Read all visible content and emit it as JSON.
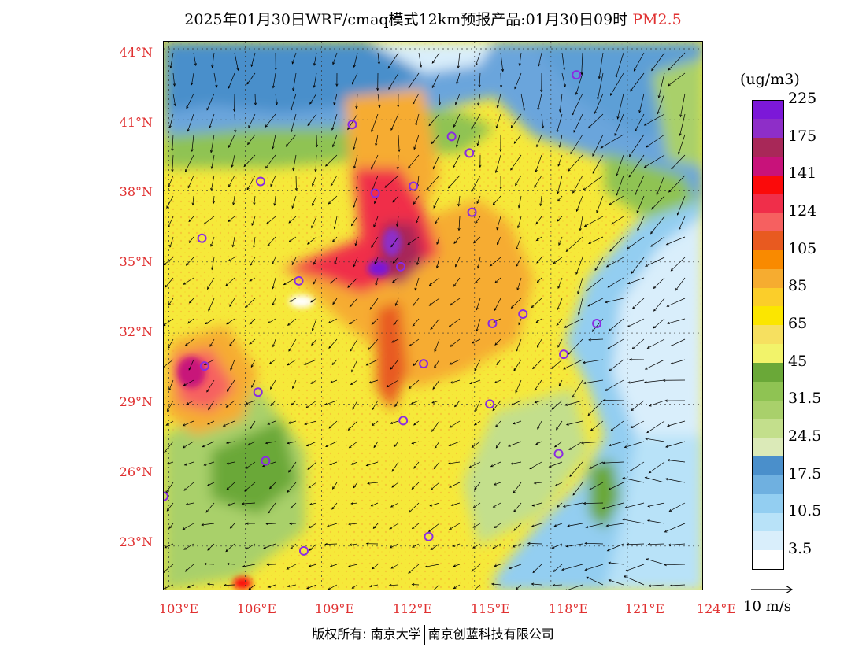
{
  "header": {
    "title_main": "2025年01月30日WRF/cmaq模式12km预报产品:01月30日09时",
    "title_product": "PM2.5"
  },
  "map": {
    "lat_labels": [
      "44°N",
      "41°N",
      "38°N",
      "35°N",
      "32°N",
      "29°N",
      "26°N",
      "23°N"
    ],
    "lon_labels": [
      "103°E",
      "106°E",
      "109°E",
      "112°E",
      "115°E",
      "118°E",
      "121°E",
      "124°E"
    ],
    "extent": {
      "lon": [
        102.8,
        124.0
      ],
      "lat": [
        21.1,
        44.3
      ]
    },
    "city_markers": [
      {
        "lon": 119.0,
        "lat": 42.9
      },
      {
        "lon": 110.2,
        "lat": 40.8
      },
      {
        "lon": 114.1,
        "lat": 40.3
      },
      {
        "lon": 114.8,
        "lat": 39.6
      },
      {
        "lon": 111.1,
        "lat": 37.9
      },
      {
        "lon": 112.6,
        "lat": 38.2
      },
      {
        "lon": 106.6,
        "lat": 38.4
      },
      {
        "lon": 114.9,
        "lat": 37.1
      },
      {
        "lon": 104.3,
        "lat": 36.0
      },
      {
        "lon": 112.1,
        "lat": 34.8
      },
      {
        "lon": 108.1,
        "lat": 34.2
      },
      {
        "lon": 115.7,
        "lat": 32.4
      },
      {
        "lon": 116.9,
        "lat": 32.8
      },
      {
        "lon": 119.8,
        "lat": 32.4
      },
      {
        "lon": 118.5,
        "lat": 31.1
      },
      {
        "lon": 104.4,
        "lat": 30.6
      },
      {
        "lon": 113.0,
        "lat": 30.7
      },
      {
        "lon": 106.5,
        "lat": 29.5
      },
      {
        "lon": 115.6,
        "lat": 29.0
      },
      {
        "lon": 112.2,
        "lat": 28.3
      },
      {
        "lon": 106.8,
        "lat": 26.6
      },
      {
        "lon": 118.3,
        "lat": 26.9
      },
      {
        "lon": 102.8,
        "lat": 25.1
      },
      {
        "lon": 113.2,
        "lat": 23.4
      },
      {
        "lon": 108.3,
        "lat": 22.8
      }
    ]
  },
  "colorbar": {
    "units": "(ug/m3)",
    "colors": [
      "#ffffff",
      "#d9eefb",
      "#b8e2f8",
      "#93cef1",
      "#6fb0e0",
      "#4a8fcb",
      "#dbeab8",
      "#c3df8c",
      "#a9d06b",
      "#8fc353",
      "#6aa838",
      "#f2f36a",
      "#f6e060",
      "#fbe600",
      "#fbce2a",
      "#f6ac30",
      "#f98a00",
      "#e85a20",
      "#f66060",
      "#f02e4a",
      "#fb0a0a",
      "#c8127a",
      "#a82858",
      "#8e2ec8",
      "#7c18d8"
    ],
    "tick_labels": [
      "3.5",
      "10.5",
      "17.5",
      "24.5",
      "31.5",
      "45",
      "65",
      "85",
      "105",
      "124",
      "141",
      "175",
      "225"
    ]
  },
  "wind_reference": {
    "label": "10 m/s"
  },
  "footer": {
    "copyright_left": "版权所有: 南京大学",
    "copyright_right": "南京创蓝科技有限公司"
  }
}
